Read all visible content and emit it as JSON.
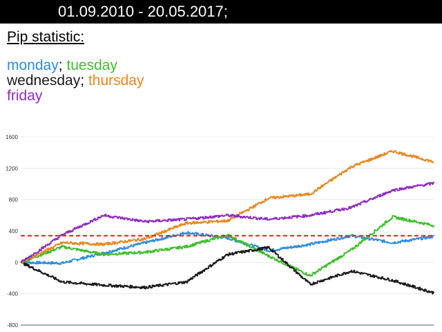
{
  "header": {
    "date_range": "01.09.2010 - 20.05.2017;"
  },
  "subtitle": "Pip statistic:",
  "legend": {
    "separator": ";",
    "items": [
      {
        "label": "monday",
        "color": "#2b8de0"
      },
      {
        "label": "tuesday",
        "color": "#3dbf2a"
      },
      {
        "label": "wednesday",
        "color": "#1a1a1a"
      },
      {
        "label": "thursday",
        "color": "#e8871e"
      },
      {
        "label": "friday",
        "color": "#8e2bc2"
      }
    ]
  },
  "chart_data": {
    "type": "line",
    "ylim": [
      -800,
      1600
    ],
    "yticks": [
      -800,
      -400,
      0,
      400,
      800,
      1200,
      1600
    ],
    "ytick_labels": [
      "-800",
      "-400",
      "0",
      "400",
      "800",
      "1200",
      "1600"
    ],
    "grid": true,
    "reference_line": {
      "value": 340,
      "color": "#e8261e",
      "style": "dashed"
    },
    "x": [
      0,
      10,
      20,
      30,
      40,
      50,
      60,
      70,
      80,
      90,
      100
    ],
    "series": [
      {
        "color": "#2b8de0",
        "values": [
          0,
          -10,
          120,
          250,
          380,
          310,
          150,
          230,
          340,
          250,
          330
        ]
      },
      {
        "color": "#3dbf2a",
        "values": [
          0,
          200,
          100,
          130,
          200,
          350,
          80,
          -170,
          160,
          580,
          470
        ]
      },
      {
        "color": "#1a1a1a",
        "values": [
          0,
          -250,
          -290,
          -320,
          -250,
          100,
          190,
          -280,
          -110,
          -230,
          -390
        ]
      },
      {
        "color": "#e8871e",
        "values": [
          0,
          250,
          230,
          300,
          500,
          530,
          820,
          870,
          1220,
          1420,
          1280
        ]
      },
      {
        "color": "#8e2bc2",
        "values": [
          0,
          350,
          600,
          520,
          550,
          600,
          550,
          600,
          700,
          920,
          1010
        ]
      }
    ]
  }
}
